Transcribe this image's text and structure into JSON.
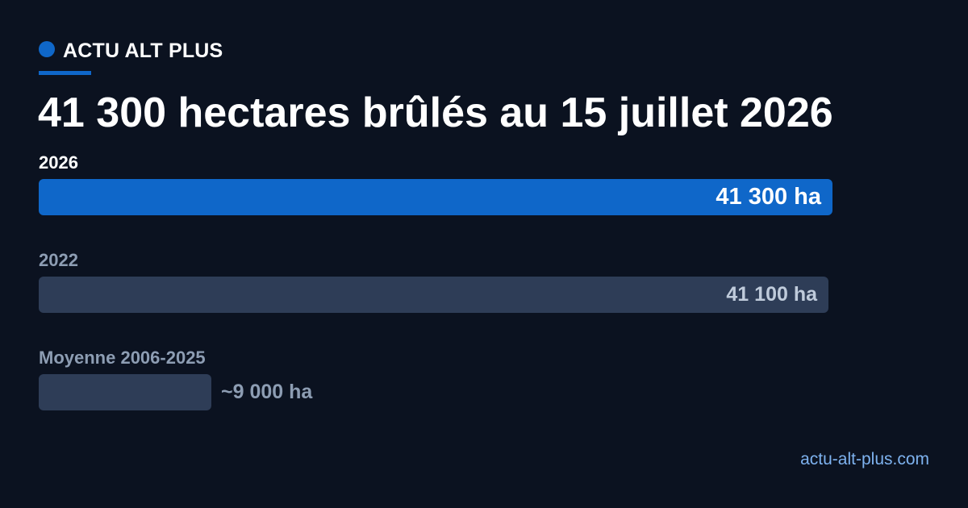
{
  "brand": {
    "name": "ACTU ALT PLUS",
    "icon": "dot-icon",
    "accent_color": "#0f67c9"
  },
  "footer": {
    "url": "actu-alt-plus.com",
    "color": "#7eb2ef"
  },
  "chart_data": {
    "type": "bar",
    "orientation": "horizontal",
    "title": "41 300 hectares brûlés au 15 juillet 2026",
    "xlabel": "",
    "ylabel": "",
    "unit": "ha",
    "grid": false,
    "legend": "none",
    "xlim": [
      0,
      41300
    ],
    "categories": [
      "2026",
      "2022",
      "Moyenne 2006-2025"
    ],
    "values": [
      41300,
      41100,
      9000
    ],
    "value_labels": [
      "41 300 ha",
      "41 100 ha",
      "~9 000 ha"
    ],
    "bar_colors": [
      "#0f67c9",
      "#2e3d57",
      "#2e3d57"
    ],
    "label_colors": [
      "#ffffff",
      "#8d9db3",
      "#8d9db3"
    ],
    "value_label_colors": [
      "#ffffff",
      "#bfcbdb",
      "#8d9db3"
    ]
  }
}
